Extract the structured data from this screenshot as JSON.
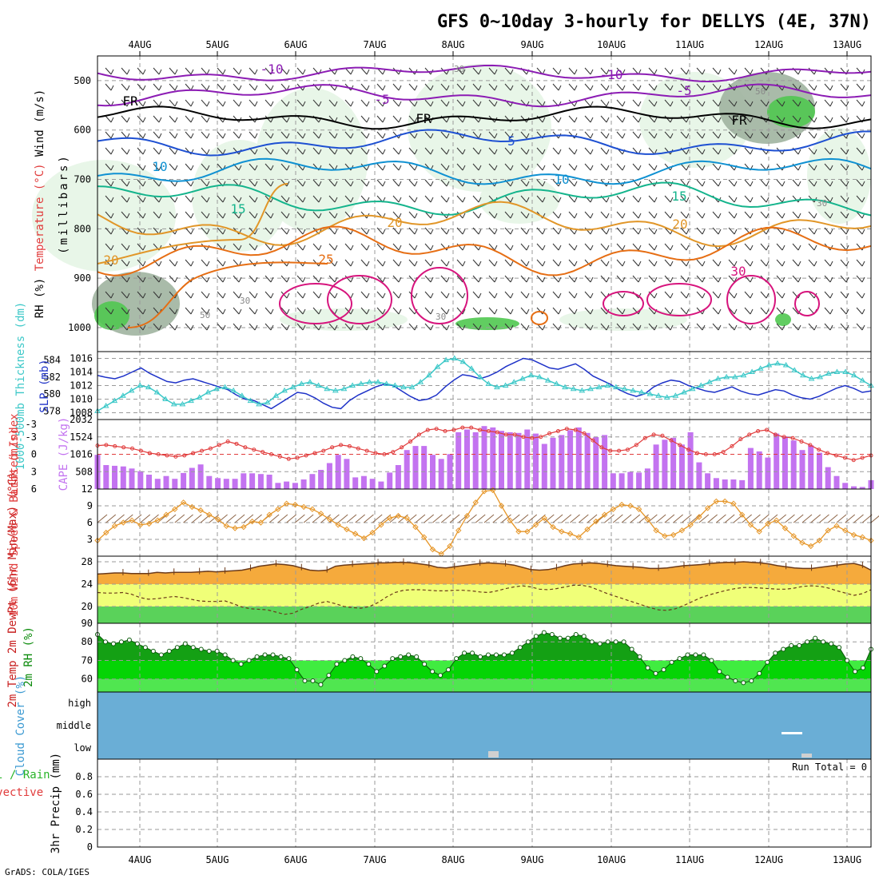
{
  "title": "GFS 0~10day 3-hourly for DELLYS (4E, 37N)",
  "footer": "GrADS: COLA/IGES",
  "colors": {
    "purple": "#8c1cb4",
    "freezing": "#000000",
    "blue": "#1e50d2",
    "lightblue": "#0f91d2",
    "teal": "#14b48c",
    "orange": "#e19628",
    "darkorange": "#e66e14",
    "magenta": "#d7147d",
    "rh_light": "#e6f5e6",
    "rh_mid": "#a0b4a0",
    "rh_dark": "#50c850",
    "slp": "#1e32c8",
    "thickness": "#3cc8c8",
    "cape": "#c373f0",
    "lifted": "#e13c3c",
    "wind": "#e69628",
    "barb": "#8c6446",
    "temp_fill": "#f5aa3c",
    "dew_fill": "#f0ff78",
    "dew_low": "#5ad25a",
    "rh_fill_dark": "#14a014",
    "rh_fill": "#00e600",
    "rh_base": "#50e650",
    "cloud": "#6aaed6"
  },
  "chart_data": [
    {
      "name": "upper-air",
      "type": "heatmap",
      "ylabel_parts": [
        "Wind (m/s)",
        "Temperature (°C)",
        "RH (%)",
        "(millibars)"
      ],
      "x_ticks": [
        "4AUG",
        "5AUG",
        "6AUG",
        "7AUG",
        "8AUG",
        "9AUG",
        "10AUG",
        "11AUG",
        "12AUG",
        "13AUG"
      ],
      "y_ticks": [
        500,
        600,
        700,
        800,
        900,
        1000
      ],
      "ylim": [
        1000,
        450
      ],
      "contours": [
        {
          "label": "-10",
          "color": "purple",
          "level_mb": 485,
          "amp": 8
        },
        {
          "label": "-5",
          "color": "purple",
          "level_mb": 530,
          "amp": 10
        },
        {
          "label": "FR",
          "color": "freezing",
          "level_mb": 575,
          "amp": 10
        },
        {
          "label": "5",
          "color": "blue",
          "level_mb": 625,
          "amp": 12
        },
        {
          "label": "10",
          "color": "lightblue",
          "level_mb": 685,
          "amp": 14
        },
        {
          "label": "15",
          "color": "teal",
          "level_mb": 740,
          "amp": 16
        },
        {
          "label": "20",
          "color": "orange",
          "level_mb": 790,
          "amp": 20
        },
        {
          "label": "25",
          "color": "darkorange",
          "level_mb": 845,
          "amp": 22
        }
      ],
      "labels": {
        "m10": "-10",
        "m10b": "-10",
        "m5": "-5",
        "m5b": "-5",
        "fr1": "FR",
        "fr2": "FR",
        "fr3": "FR",
        "p5": "5",
        "p10a": "10",
        "p10b": "10",
        "p15a": "15",
        "p15b": "15",
        "p20a": "20",
        "p20b": "20",
        "p20c": "20",
        "p25": "25",
        "p30": "30"
      },
      "rh_labels": [
        "30",
        "50",
        "30",
        "30",
        "50",
        "30"
      ]
    },
    {
      "name": "slp-thickness",
      "type": "line",
      "ylabel_left": "1000-500mb Thickness (dm)",
      "ylabel_right": "SLP (mb)",
      "left_ticks": [
        584,
        582,
        580,
        578
      ],
      "right_ticks": [
        1016,
        1014,
        1012,
        1010,
        1008
      ],
      "series": [
        {
          "name": "SLP",
          "color": "slp",
          "values": [
            1013.5,
            1013.2,
            1013.0,
            1013.4,
            1014.0,
            1014.6,
            1013.8,
            1013.2,
            1012.6,
            1012.4,
            1012.8,
            1013.0,
            1012.6,
            1012.2,
            1011.8,
            1011.4,
            1010.6,
            1010.0,
            1009.8,
            1009.2,
            1008.6,
            1009.4,
            1010.2,
            1011.0,
            1010.8,
            1010.2,
            1009.4,
            1008.8,
            1008.6,
            1009.8,
            1010.6,
            1011.2,
            1011.8,
            1012.2,
            1012.0,
            1011.2,
            1010.4,
            1009.8,
            1010.0,
            1010.6,
            1011.8,
            1012.8,
            1013.6,
            1013.4,
            1013.0,
            1013.4,
            1014.0,
            1014.8,
            1015.4,
            1016.0,
            1015.8,
            1015.2,
            1014.6,
            1014.4,
            1014.8,
            1015.2,
            1014.4,
            1013.4,
            1012.8,
            1012.2,
            1011.4,
            1010.8,
            1010.4,
            1010.8,
            1011.8,
            1012.4,
            1012.8,
            1012.6,
            1012.0,
            1011.6,
            1011.2,
            1011.0,
            1011.4,
            1011.8,
            1011.2,
            1010.8,
            1010.6,
            1011.0,
            1011.4,
            1011.2,
            1010.6,
            1010.2,
            1010.0,
            1010.4,
            1011.0,
            1011.6,
            1012.0,
            1011.6,
            1011.0,
            1011.2
          ]
        },
        {
          "name": "Thickness",
          "color": "thickness",
          "values": [
            578.0,
            578.6,
            579.2,
            579.8,
            580.4,
            581.0,
            580.8,
            580.2,
            579.4,
            578.8,
            578.8,
            579.2,
            579.6,
            580.2,
            580.6,
            580.8,
            580.4,
            579.8,
            579.2,
            578.8,
            579.0,
            579.8,
            580.4,
            580.8,
            581.2,
            581.4,
            581.0,
            580.6,
            580.4,
            580.6,
            581.0,
            581.2,
            581.4,
            581.4,
            581.2,
            581.0,
            580.8,
            580.8,
            581.4,
            582.2,
            583.2,
            584.0,
            584.2,
            583.8,
            583.0,
            582.0,
            581.2,
            580.8,
            581.0,
            581.4,
            581.8,
            582.2,
            582.0,
            581.6,
            581.2,
            580.8,
            580.6,
            580.4,
            580.6,
            580.8,
            581.0,
            580.8,
            580.6,
            580.4,
            580.2,
            580.0,
            579.8,
            579.6,
            579.8,
            580.2,
            580.6,
            581.0,
            581.4,
            581.8,
            582.0,
            582.0,
            582.2,
            582.6,
            583.0,
            583.4,
            583.6,
            583.4,
            582.8,
            582.2,
            581.8,
            582.0,
            582.4,
            582.6,
            582.6,
            582.2,
            581.6,
            581.0
          ]
        }
      ]
    },
    {
      "name": "cape-lifted",
      "type": "bar",
      "ylabel_left": "Lifted Index",
      "ylabel_right": "CAPE (J/kg)",
      "left_ticks": [
        "-3",
        "-3",
        "0",
        "3",
        "6"
      ],
      "right_ticks": [
        "2032",
        "1524",
        "1016",
        "508"
      ],
      "series": [
        {
          "name": "CAPE",
          "color": "cape",
          "values": [
            1000,
            700,
            680,
            660,
            600,
            520,
            420,
            300,
            380,
            300,
            470,
            620,
            720,
            380,
            320,
            300,
            300,
            460,
            460,
            440,
            420,
            180,
            220,
            180,
            280,
            440,
            560,
            760,
            1000,
            880,
            340,
            380,
            300,
            220,
            480,
            700,
            1140,
            1260,
            1260,
            1000,
            880,
            1020,
            1660,
            1740,
            1660,
            1840,
            1800,
            1700,
            1660,
            1640,
            1740,
            1620,
            1320,
            1500,
            1580,
            1720,
            1800,
            1640,
            1520,
            1580,
            460,
            460,
            500,
            480,
            600,
            1300,
            1440,
            1500,
            1300,
            1660,
            780,
            460,
            320,
            280,
            280,
            260,
            1200,
            1100,
            920,
            1620,
            1540,
            1420,
            1140,
            1280,
            1060,
            640,
            380,
            180,
            80,
            60,
            260
          ]
        },
        {
          "name": "Lifted Index",
          "color": "lifted",
          "values": [
            -1.5,
            -1.6,
            -1.4,
            -1.2,
            -1.0,
            -0.6,
            -0.2,
            0,
            0.2,
            0.4,
            0.2,
            -0.2,
            -0.6,
            -1.0,
            -1.6,
            -2.2,
            -1.8,
            -1.2,
            -0.8,
            -0.4,
            0.0,
            0.4,
            0.8,
            0.6,
            0.2,
            -0.2,
            -0.6,
            -1.2,
            -1.6,
            -1.4,
            -1.0,
            -0.6,
            -0.2,
            0.0,
            -0.4,
            -1.2,
            -2.2,
            -3.4,
            -4.2,
            -4.4,
            -4.0,
            -4.2,
            -4.6,
            -4.6,
            -4.2,
            -4.0,
            -3.8,
            -3.4,
            -3.4,
            -3.0,
            -2.8,
            -3.0,
            -3.6,
            -4.0,
            -4.4,
            -4.2,
            -3.6,
            -2.4,
            -1.2,
            -0.6,
            -0.6,
            -0.8,
            -1.6,
            -2.8,
            -3.4,
            -3.2,
            -2.4,
            -1.6,
            -0.8,
            -0.2,
            0.0,
            0.0,
            -0.4,
            -1.4,
            -2.6,
            -3.4,
            -4.0,
            -4.2,
            -3.4,
            -3.0,
            -2.8,
            -2.2,
            -1.6,
            -0.8,
            -0.2,
            0.2,
            0.6,
            1.0,
            0.6,
            0.2
          ]
        }
      ]
    },
    {
      "name": "10m-wind",
      "type": "line",
      "ylabel": "10m Wind Speed & Barbs (m/s)",
      "y_ticks": [
        12,
        9,
        6,
        3
      ],
      "ylim": [
        0,
        12
      ],
      "series": [
        {
          "name": "Speed",
          "color": "wind",
          "values": [
            2.8,
            4.2,
            5.4,
            6.0,
            6.4,
            5.6,
            5.8,
            6.4,
            7.4,
            8.4,
            9.6,
            8.8,
            8.2,
            7.4,
            6.6,
            5.4,
            5.0,
            5.2,
            6.2,
            6.0,
            7.4,
            8.4,
            9.4,
            9.2,
            8.8,
            8.4,
            7.6,
            6.6,
            5.6,
            4.8,
            4.0,
            3.2,
            4.2,
            5.6,
            6.8,
            7.2,
            6.8,
            5.2,
            3.4,
            1.2,
            0.4,
            1.8,
            4.6,
            7.2,
            9.6,
            11.6,
            11.8,
            9.0,
            6.4,
            4.4,
            4.4,
            5.6,
            6.8,
            5.2,
            4.4,
            4.0,
            3.4,
            4.8,
            6.2,
            7.4,
            8.4,
            9.2,
            9.0,
            8.4,
            6.6,
            4.6,
            3.6,
            3.8,
            4.6,
            5.6,
            7.0,
            8.6,
            9.8,
            9.8,
            9.4,
            7.4,
            5.6,
            4.4,
            5.8,
            6.4,
            5.0,
            3.6,
            2.4,
            1.8,
            2.8,
            4.6,
            5.4,
            4.6,
            3.8,
            3.4,
            2.8
          ]
        }
      ]
    },
    {
      "name": "2m-temp",
      "type": "area",
      "ylabel": "2m Temp 2m DewPt (6hr Min/Max) (°C)",
      "y_ticks": [
        28,
        24,
        20
      ],
      "ylim": [
        17,
        29
      ],
      "series": [
        {
          "name": "2m Temp",
          "color": "temp_fill",
          "values": [
            25.8,
            25.9,
            26.0,
            26.0,
            25.9,
            25.9,
            25.9,
            26.1,
            26.0,
            26.1,
            26.1,
            26.1,
            26.2,
            26.3,
            26.2,
            26.3,
            26.4,
            26.5,
            26.8,
            27.2,
            27.4,
            27.6,
            27.5,
            27.3,
            26.9,
            26.5,
            26.4,
            26.5,
            27.2,
            27.4,
            27.5,
            27.6,
            27.7,
            27.8,
            27.8,
            27.9,
            27.9,
            27.8,
            27.6,
            27.4,
            27.0,
            26.9,
            27.1,
            27.3,
            27.5,
            27.7,
            27.8,
            27.7,
            27.6,
            27.4,
            27.0,
            26.6,
            26.5,
            26.6,
            26.9,
            27.3,
            27.6,
            27.7,
            27.8,
            27.7,
            27.5,
            27.3,
            27.2,
            27.1,
            27.0,
            26.8,
            26.8,
            26.9,
            27.1,
            27.3,
            27.4,
            27.5,
            27.7,
            27.8,
            27.9,
            27.9,
            28.0,
            27.9,
            27.8,
            27.6,
            27.3,
            27.1,
            26.9,
            26.8,
            26.8,
            27.0,
            27.2,
            27.4,
            27.6,
            27.7,
            27.3,
            26.5
          ]
        },
        {
          "name": "2m DewPt",
          "color": "dewpt",
          "values": [
            22.5,
            22.4,
            22.4,
            22.5,
            22.2,
            21.6,
            21.3,
            21.4,
            21.6,
            21.8,
            21.6,
            21.3,
            21.0,
            20.9,
            20.9,
            21.0,
            20.5,
            19.9,
            19.6,
            19.5,
            19.4,
            19.0,
            18.6,
            18.8,
            19.5,
            20.0,
            20.6,
            20.9,
            20.5,
            20.0,
            19.8,
            19.7,
            20.0,
            20.7,
            21.7,
            22.5,
            22.9,
            23.0,
            23.0,
            22.9,
            22.8,
            22.8,
            22.9,
            22.9,
            22.8,
            22.6,
            22.5,
            22.8,
            23.2,
            23.5,
            23.7,
            23.5,
            23.1,
            23.0,
            23.2,
            23.5,
            23.8,
            23.8,
            23.5,
            22.9,
            22.3,
            21.8,
            21.3,
            20.8,
            20.3,
            19.8,
            19.4,
            19.3,
            19.6,
            20.2,
            20.9,
            21.6,
            22.1,
            22.5,
            22.9,
            23.2,
            23.4,
            23.4,
            23.3,
            23.2,
            23.1,
            23.1,
            23.3,
            23.6,
            23.7,
            23.6,
            23.3,
            22.8,
            22.4,
            22.0,
            22.3,
            23.0
          ]
        }
      ]
    },
    {
      "name": "2m-rh",
      "type": "area",
      "ylabel": "2m RH (%)",
      "y_ticks": [
        90,
        80,
        70,
        60
      ],
      "ylim": [
        53,
        90
      ],
      "series": [
        {
          "name": "2m RH",
          "color": "rh_fill",
          "values": [
            84,
            80,
            79,
            80,
            81,
            79,
            77,
            75,
            73,
            75,
            77,
            79,
            77,
            76,
            75,
            75,
            73,
            70,
            68,
            70,
            72,
            73,
            73,
            72,
            71,
            65,
            59,
            59,
            57,
            62,
            68,
            70,
            72,
            71,
            68,
            64,
            67,
            71,
            72,
            73,
            72,
            68,
            64,
            62,
            65,
            71,
            74,
            74,
            72,
            73,
            73,
            73,
            74,
            77,
            80,
            83,
            85,
            84,
            82,
            82,
            84,
            83,
            80,
            79,
            80,
            80,
            80,
            76,
            72,
            66,
            63,
            65,
            69,
            71,
            73,
            73,
            73,
            70,
            64,
            61,
            59,
            58,
            59,
            63,
            69,
            74,
            76,
            78,
            78,
            80,
            82,
            80,
            79,
            77,
            70,
            64,
            66,
            76
          ]
        }
      ]
    },
    {
      "name": "cloud-cover",
      "type": "heatmap",
      "ylabel": "Cloud Cover (%)",
      "y_ticks": [
        "high",
        "middle",
        "low"
      ]
    },
    {
      "name": "precip",
      "type": "bar",
      "ylabel": "3hr Precip (mm)",
      "ylabel_left": "Total / Rain",
      "ylabel_left2": "Convective",
      "y_ticks": [
        0.8,
        0.6,
        0.4,
        0.2,
        0
      ],
      "ylim": [
        0,
        1.0
      ],
      "run_total": "Run Total = 0",
      "values": []
    }
  ]
}
